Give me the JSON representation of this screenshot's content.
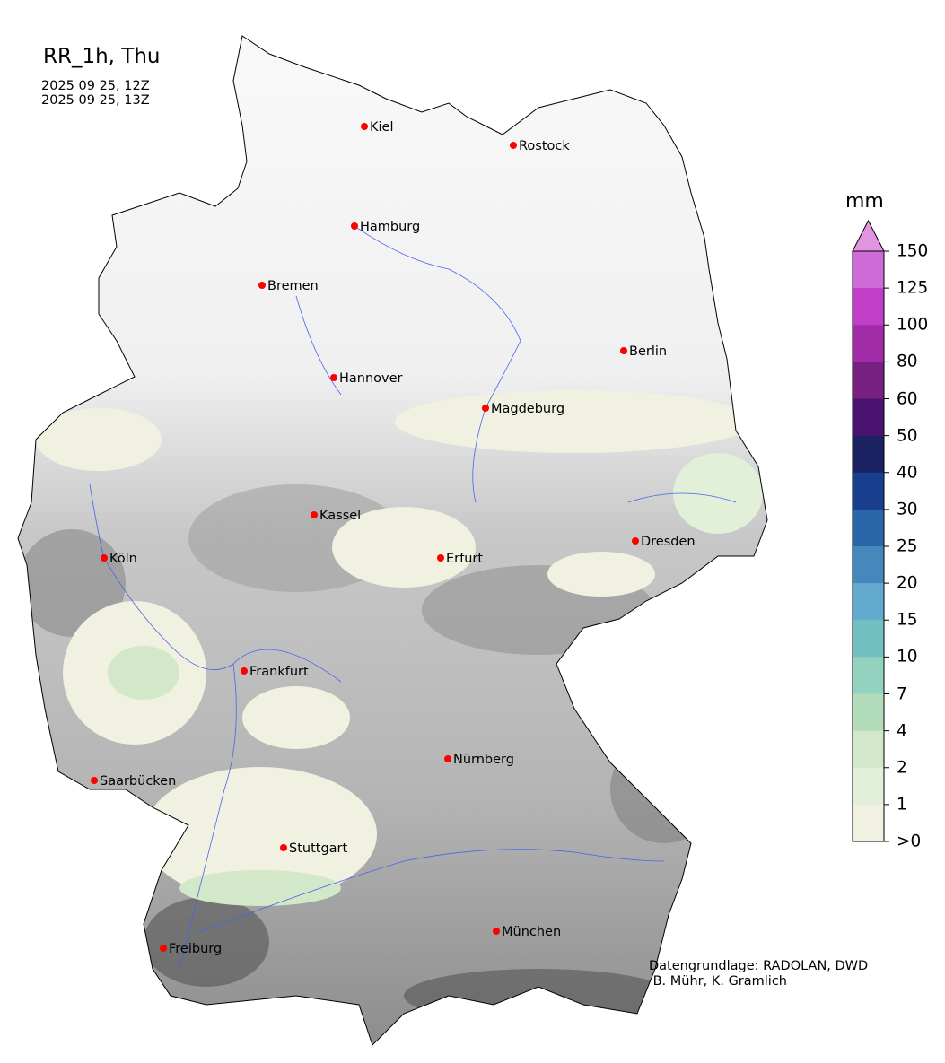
{
  "title": "RR_1h, Thu",
  "valid_from": "2025 09 25, 12Z",
  "valid_to": "2025 09 25, 13Z",
  "credit_line1": "Datengrundlage: RADOLAN, DWD",
  "credit_line2": " B. Mühr, K. Gramlich",
  "colorbar": {
    "unit": "mm",
    "ticks": [
      "150",
      "125",
      "100",
      "80",
      "60",
      "50",
      "40",
      "30",
      "25",
      "20",
      "15",
      "10",
      "7",
      "4",
      "2",
      "1",
      ">0"
    ],
    "colors": [
      "#d06ad8",
      "#c03ec8",
      "#a02ca8",
      "#782080",
      "#4a1270",
      "#1a2262",
      "#183e8e",
      "#2b66a8",
      "#4688bb",
      "#62abcf",
      "#72c0c2",
      "#94d2c0",
      "#b2dcba",
      "#d2e8c8",
      "#e2f0da",
      "#f1f1e1"
    ],
    "extend_color": "#e195e1"
  },
  "cities": [
    "Kiel",
    "Rostock",
    "Hamburg",
    "Bremen",
    "Berlin",
    "Hannover",
    "Magdeburg",
    "Kassel",
    "Köln",
    "Erfurt",
    "Dresden",
    "Frankfurt",
    "Nürnberg",
    "Saarbücken",
    "Stuttgart",
    "München",
    "Freiburg"
  ],
  "colors": {
    "city_marker": "#ff0000",
    "rivers": "#4466ee",
    "precip_light": "#f1f1e1"
  }
}
